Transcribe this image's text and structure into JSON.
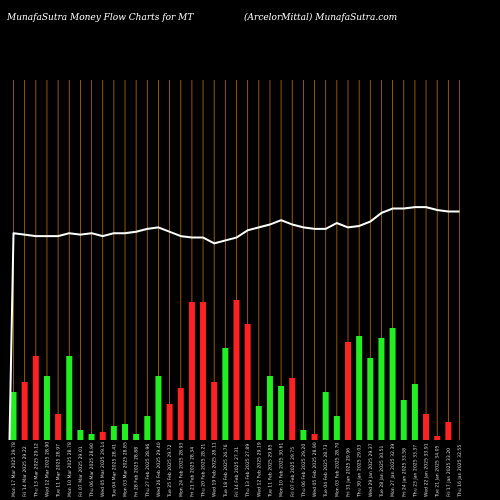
{
  "header": {
    "left_title": "MunafaSutra  Money Flow  Charts for MT",
    "right_title": "(ArcelorMittal) MunafaSutra.com"
  },
  "colors": {
    "background": "#000000",
    "grid": "#b36a00",
    "up": "#22ee22",
    "down": "#ff2222",
    "line": "#ffffff"
  },
  "chart_data": {
    "type": "bar",
    "title": "",
    "xlabel": "",
    "ylabel": "",
    "ylim": [
      0,
      100
    ],
    "line_ylim": [
      0,
      100
    ],
    "grid": "vertical",
    "categories": [
      "Mon 17 Mar 2025 29.78",
      "Fri 14 Mar 2025 29.22",
      "Thu 13 Mar 2025 29.12",
      "Wed 12 Mar 2025 28.90",
      "Tue 11 Mar 2025 28.97",
      "Mon 10 Mar 2025 28.78",
      "Fri 07 Mar 2025 29.01",
      "Thu 06 Mar 2025 28.90",
      "Wed 05 Mar 2025 29.14",
      "Tue 04 Mar 2025 28.41",
      "Mon 03 Mar 2025 28.85",
      "Fri 28 Feb 2025 28.88",
      "Thu 27 Feb 2025 28.96",
      "Wed 26 Feb 2025 29.40",
      "Tue 25 Feb 2025 29.72",
      "Mon 24 Feb 2025 28.93",
      "Fri 21 Feb 2025 28.34",
      "Thu 20 Feb 2025 28.21",
      "Wed 19 Feb 2025 28.11",
      "Tue 18 Feb 2025 26.76",
      "Fri 14 Feb 2025 27.31",
      "Thu 13 Feb 2025 27.89",
      "Wed 12 Feb 2025 29.19",
      "Tue 11 Feb 2025 29.85",
      "Mon 10 Feb 2025 30.61",
      "Fri 07 Feb 2025 29.75",
      "Thu 06 Feb 2025 29.20",
      "Wed 05 Feb 2025 28.90",
      "Tue 04 Feb 2025 28.73",
      "Mon 03 Feb 2025 28.70",
      "Fri 31 Jan 2025 29.96",
      "Thu 30 Jan 2025 29.03",
      "Wed 29 Jan 2025 29.37",
      "Tue 28 Jan 2025 30.51",
      "Mon 27 Jan 2025 32.39",
      "Fri 24 Jan 2025 33.58",
      "Thu 23 Jan 2025 33.37",
      "Wed 22 Jan 2025 33.91",
      "Tue 21 Jan 2025 34.05",
      "Fri 17 Jan 2025 33.20",
      "Thu 16 Jan 2025 32.55"
    ],
    "series": [
      {
        "values": [
          24,
          29,
          42,
          32,
          13,
          42,
          5,
          3,
          4,
          7,
          8,
          3,
          12,
          32,
          18,
          26,
          69,
          69,
          29,
          46,
          70,
          58,
          17,
          32,
          27,
          31,
          5,
          3,
          24,
          12,
          49,
          52,
          41,
          51,
          56,
          20,
          28,
          13,
          2,
          9,
          0
        ],
        "directions": [
          "up",
          "down",
          "down",
          "up",
          "down",
          "up",
          "up",
          "up",
          "down",
          "up",
          "up",
          "up",
          "up",
          "up",
          "down",
          "down",
          "down",
          "down",
          "down",
          "up",
          "down",
          "down",
          "up",
          "up",
          "up",
          "down",
          "up",
          "down",
          "up",
          "up",
          "down",
          "up",
          "up",
          "up",
          "up",
          "up",
          "up",
          "down",
          "down",
          "down",
          "down"
        ]
      },
      {
        "values": [
          84,
          83,
          82,
          82,
          82,
          84,
          83,
          84,
          82,
          84,
          84,
          85,
          87,
          88,
          85,
          82,
          81,
          81,
          77,
          79,
          81,
          86,
          88,
          90,
          93,
          90,
          88,
          87,
          87,
          91,
          88,
          89,
          92,
          98,
          101,
          101,
          102,
          102,
          100,
          99,
          99
        ]
      }
    ]
  }
}
